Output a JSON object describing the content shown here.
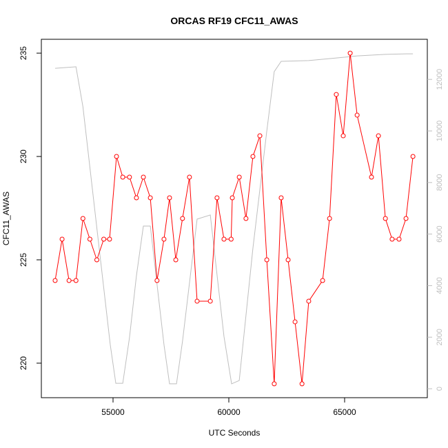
{
  "chart_data": {
    "type": "line",
    "title": "ORCAS RF19 CFC11_AWAS",
    "xlabel": "UTC Seconds",
    "ylabel": "CFC11_AWAS",
    "xlim": [
      51905,
      68571
    ],
    "xticks": [
      55000,
      60000,
      65000
    ],
    "ylim": [
      218.33,
      235.67
    ],
    "yticks": [
      220,
      225,
      230,
      235
    ],
    "y2lim": [
      -347,
      13556
    ],
    "y2ticks": [
      0,
      2000,
      4000,
      6000,
      8000,
      10000,
      12000
    ],
    "series": [
      {
        "color": "#bebebe",
        "axis": "y2",
        "markers": false,
        "x": [
          52500,
          53400,
          53700,
          54880,
          55120,
          55420,
          55710,
          56010,
          56310,
          56610,
          57200,
          57440,
          57740,
          58000,
          58630,
          59200,
          59790,
          60120,
          60450,
          61040,
          61640,
          61960,
          62260,
          63450,
          64640,
          65540,
          66760,
          67650,
          67950
        ],
        "values": [
          12430,
          12490,
          10940,
          1710,
          210,
          210,
          1980,
          4380,
          6310,
          6310,
          1710,
          190,
          190,
          1840,
          6580,
          6740,
          2030,
          190,
          320,
          5450,
          10000,
          12300,
          12700,
          12730,
          12830,
          12910,
          12970,
          12990,
          12990
        ]
      },
      {
        "color": "#ff0000",
        "axis": "y",
        "markers": true,
        "x": [
          52500,
          52800,
          53100,
          53400,
          53700,
          54000,
          54300,
          54600,
          54850,
          55150,
          55420,
          55710,
          56010,
          56310,
          56610,
          56900,
          57200,
          57440,
          57710,
          58000,
          58300,
          58630,
          59200,
          59490,
          59790,
          60100,
          60150,
          60450,
          60740,
          61040,
          61340,
          61640,
          61960,
          62260,
          62560,
          62860,
          63160,
          63450,
          64050,
          64350,
          64640,
          64940,
          65240,
          65540,
          66160,
          66460,
          66760,
          67050,
          67350,
          67650,
          67950
        ],
        "values": [
          224,
          226,
          224,
          224,
          227,
          226,
          225,
          226,
          226,
          230,
          229,
          229,
          228,
          229,
          228,
          224,
          226,
          228,
          225,
          227,
          229,
          223,
          223,
          228,
          226,
          226,
          228,
          229,
          227,
          230,
          231,
          225,
          219,
          228,
          225,
          222,
          219,
          223,
          224,
          227,
          233,
          231,
          235,
          232,
          229,
          231,
          227,
          226,
          226,
          227,
          230
        ]
      }
    ]
  }
}
